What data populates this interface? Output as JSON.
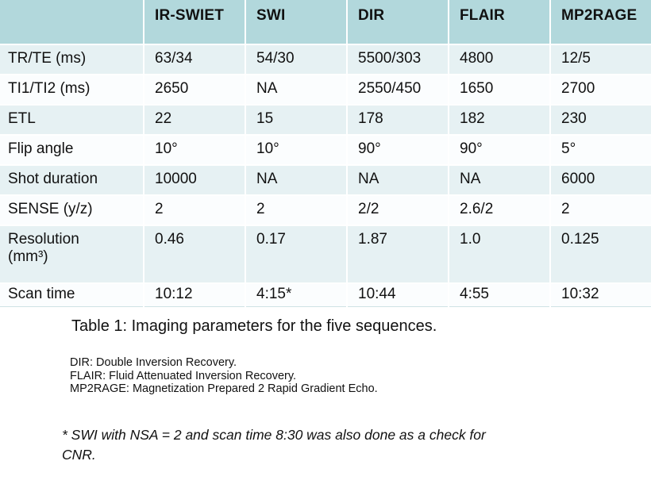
{
  "colors": {
    "header_bg": "#b2d8dc",
    "band_bg": "#e6f1f3",
    "plain_bg": "#fbfdfe",
    "table_edge": "#cfe2e5",
    "text": "#111111"
  },
  "table": {
    "header": [
      "",
      "IR-SWIET",
      "SWI",
      "DIR",
      "FLAIR",
      "MP2RAGE"
    ],
    "rows": [
      {
        "label": "TR/TE (ms)",
        "values": [
          "63/34",
          "54/30",
          "5500/303",
          "4800",
          "12/5"
        ]
      },
      {
        "label": "TI1/TI2 (ms)",
        "values": [
          "2650",
          "NA",
          "2550/450",
          "1650",
          "2700"
        ]
      },
      {
        "label": "ETL",
        "values": [
          "22",
          "15",
          "178",
          "182",
          "230"
        ]
      },
      {
        "label": "Flip angle",
        "values": [
          "10°",
          "10°",
          "90°",
          "90°",
          "5°"
        ]
      },
      {
        "label": "Shot duration",
        "values": [
          "10000",
          "NA",
          "NA",
          "NA",
          "6000"
        ]
      },
      {
        "label": "SENSE (y/z)",
        "values": [
          "2",
          "2",
          "2/2",
          "2.6/2",
          "2"
        ]
      },
      {
        "label": "Resolution\n(mm³)",
        "values": [
          "0.46",
          "0.17",
          "1.87",
          "1.0",
          "0.125"
        ]
      },
      {
        "label": "Scan time",
        "values": [
          "10:12",
          "4:15*",
          "10:44",
          "4:55",
          "10:32"
        ]
      }
    ]
  },
  "caption": "Table 1: Imaging parameters for the five sequences.",
  "footnotes": [
    "DIR: Double Inversion Recovery.",
    "FLAIR: Fluid Attenuated Inversion Recovery.",
    "MP2RAGE: Magnetization Prepared 2 Rapid Gradient Echo."
  ],
  "note_lines": [
    "* SWI with NSA = 2 and scan time 8:30 was also done as a check for",
    "CNR."
  ]
}
